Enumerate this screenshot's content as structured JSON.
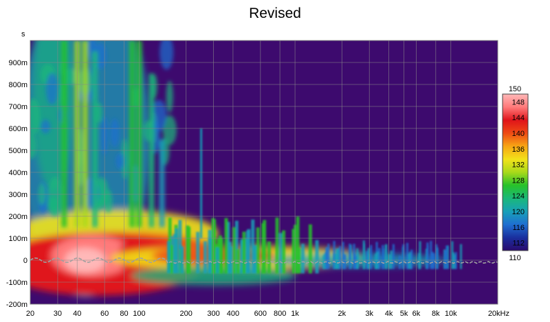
{
  "chart_data": {
    "type": "heatmap",
    "title": "Revised",
    "ylabel": "s",
    "xlabel": "",
    "x_scale": "log",
    "xlim": [
      20,
      20000
    ],
    "ylim": [
      -0.2,
      1.0
    ],
    "x_ticks": [
      {
        "v": 20,
        "label": "20"
      },
      {
        "v": 30,
        "label": "30"
      },
      {
        "v": 40,
        "label": "40"
      },
      {
        "v": 60,
        "label": "60"
      },
      {
        "v": 80,
        "label": "80"
      },
      {
        "v": 100,
        "label": "100"
      },
      {
        "v": 200,
        "label": "200"
      },
      {
        "v": 300,
        "label": "300"
      },
      {
        "v": 400,
        "label": "400"
      },
      {
        "v": 600,
        "label": "600"
      },
      {
        "v": 800,
        "label": "800"
      },
      {
        "v": 1000,
        "label": "1k"
      },
      {
        "v": 2000,
        "label": "2k"
      },
      {
        "v": 3000,
        "label": "3k"
      },
      {
        "v": 4000,
        "label": "4k"
      },
      {
        "v": 5000,
        "label": "5k"
      },
      {
        "v": 6000,
        "label": "6k"
      },
      {
        "v": 8000,
        "label": "8k"
      },
      {
        "v": 10000,
        "label": "10k"
      },
      {
        "v": 20000,
        "label": "20kHz"
      }
    ],
    "y_ticks": [
      {
        "v": 0.9,
        "label": "900m"
      },
      {
        "v": 0.8,
        "label": "800m"
      },
      {
        "v": 0.7,
        "label": "700m"
      },
      {
        "v": 0.6,
        "label": "600m"
      },
      {
        "v": 0.5,
        "label": "500m"
      },
      {
        "v": 0.4,
        "label": "400m"
      },
      {
        "v": 0.3,
        "label": "300m"
      },
      {
        "v": 0.2,
        "label": "200m"
      },
      {
        "v": 0.1,
        "label": "100m"
      },
      {
        "v": 0.0,
        "label": "0"
      },
      {
        "v": -0.1,
        "label": "-100m"
      },
      {
        "v": -0.2,
        "label": "-200m"
      }
    ],
    "grid": true,
    "colorbar": {
      "range": [
        110,
        150
      ],
      "ticks": [
        {
          "v": 150,
          "label": "150"
        },
        {
          "v": 148,
          "label": "148"
        },
        {
          "v": 144,
          "label": "144"
        },
        {
          "v": 140,
          "label": "140"
        },
        {
          "v": 136,
          "label": "136"
        },
        {
          "v": 132,
          "label": "132"
        },
        {
          "v": 128,
          "label": "128"
        },
        {
          "v": 124,
          "label": "124"
        },
        {
          "v": 120,
          "label": "120"
        },
        {
          "v": 116,
          "label": "116"
        },
        {
          "v": 112,
          "label": "112"
        },
        {
          "v": 110,
          "label": "110"
        }
      ],
      "colors": [
        "#2a0a6e",
        "#1a2f9e",
        "#1f6fd0",
        "#17a0b8",
        "#1bb87a",
        "#27c22a",
        "#a8d91a",
        "#f2e21a",
        "#f7a514",
        "#ee4a14",
        "#e0141a",
        "#ff7a7a",
        "#ffb8b8"
      ]
    },
    "background_color": "#3d0a6e",
    "arrival_trace_color": "#a0a0a0",
    "features": [
      {
        "f_from": 20,
        "f_to": 160,
        "t_max": 1.0,
        "level": "high",
        "note": "long low-frequency decay"
      },
      {
        "f_from": 30,
        "f_to": 110,
        "t_from": -0.15,
        "t_to": 0.15,
        "level": "max"
      },
      {
        "f_from": 160,
        "f_to": 1500,
        "t_max": 0.18,
        "level": "medium"
      },
      {
        "f_from": 1500,
        "f_to": 12000,
        "t_max": 0.08,
        "level": "low"
      },
      {
        "f": 250,
        "t_max": 0.6,
        "level": "ridge"
      }
    ]
  }
}
